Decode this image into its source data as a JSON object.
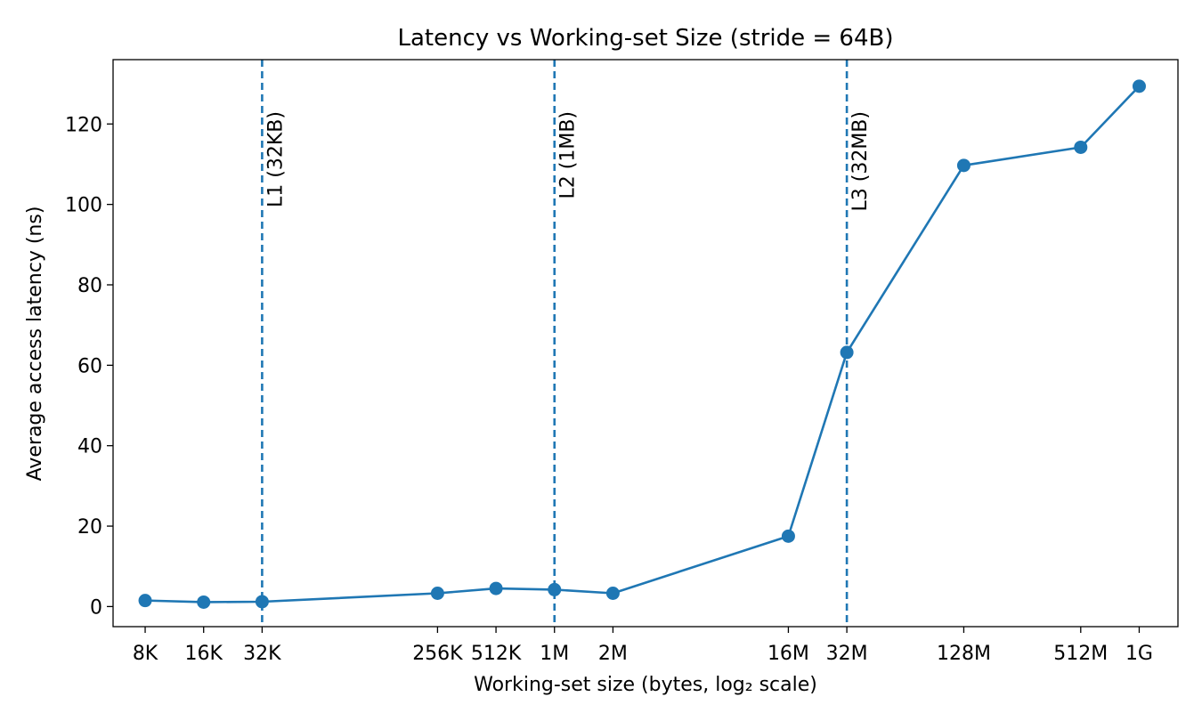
{
  "chart_data": {
    "type": "line",
    "title": "Latency vs Working-set Size (stride = 64B)",
    "xlabel": "Working-set size (bytes, log₂ scale)",
    "ylabel": "Average access latency (ns)",
    "x_scale": "log2",
    "grid": false,
    "legend": "none",
    "xlim_bytes": [
      5600,
      1700000000
    ],
    "ylim": [
      -5,
      136
    ],
    "x_ticks": [
      {
        "label": "8K",
        "bytes": 8192
      },
      {
        "label": "16K",
        "bytes": 16384
      },
      {
        "label": "32K",
        "bytes": 32768
      },
      {
        "label": "256K",
        "bytes": 262144
      },
      {
        "label": "512K",
        "bytes": 524288
      },
      {
        "label": "1M",
        "bytes": 1048576
      },
      {
        "label": "2M",
        "bytes": 2097152
      },
      {
        "label": "16M",
        "bytes": 16777216
      },
      {
        "label": "32M",
        "bytes": 33554432
      },
      {
        "label": "128M",
        "bytes": 134217728
      },
      {
        "label": "512M",
        "bytes": 536870912
      },
      {
        "label": "1G",
        "bytes": 1073741824
      }
    ],
    "y_ticks": [
      0,
      20,
      40,
      60,
      80,
      100,
      120
    ],
    "series": [
      {
        "color": "#1f77b4",
        "points": [
          {
            "x": "8K",
            "bytes": 8192,
            "y": 1.5
          },
          {
            "x": "16K",
            "bytes": 16384,
            "y": 1.1
          },
          {
            "x": "32K",
            "bytes": 32768,
            "y": 1.2
          },
          {
            "x": "256K",
            "bytes": 262144,
            "y": 3.3
          },
          {
            "x": "512K",
            "bytes": 524288,
            "y": 4.5
          },
          {
            "x": "1M",
            "bytes": 1048576,
            "y": 4.2
          },
          {
            "x": "2M",
            "bytes": 2097152,
            "y": 3.3
          },
          {
            "x": "16M",
            "bytes": 16777216,
            "y": 17.5
          },
          {
            "x": "32M",
            "bytes": 33554432,
            "y": 63.2
          },
          {
            "x": "128M",
            "bytes": 134217728,
            "y": 109.7
          },
          {
            "x": "512M",
            "bytes": 536870912,
            "y": 114.2
          },
          {
            "x": "1G",
            "bytes": 1073741824,
            "y": 129.4
          }
        ]
      }
    ],
    "annotations": [
      {
        "label": "L1 (32KB)",
        "bytes": 32768,
        "style": "dashed",
        "color": "#1f77b4"
      },
      {
        "label": "L2 (1MB)",
        "bytes": 1048576,
        "style": "dashed",
        "color": "#1f77b4"
      },
      {
        "label": "L3 (32MB)",
        "bytes": 33554432,
        "style": "dashed",
        "color": "#1f77b4"
      }
    ]
  }
}
